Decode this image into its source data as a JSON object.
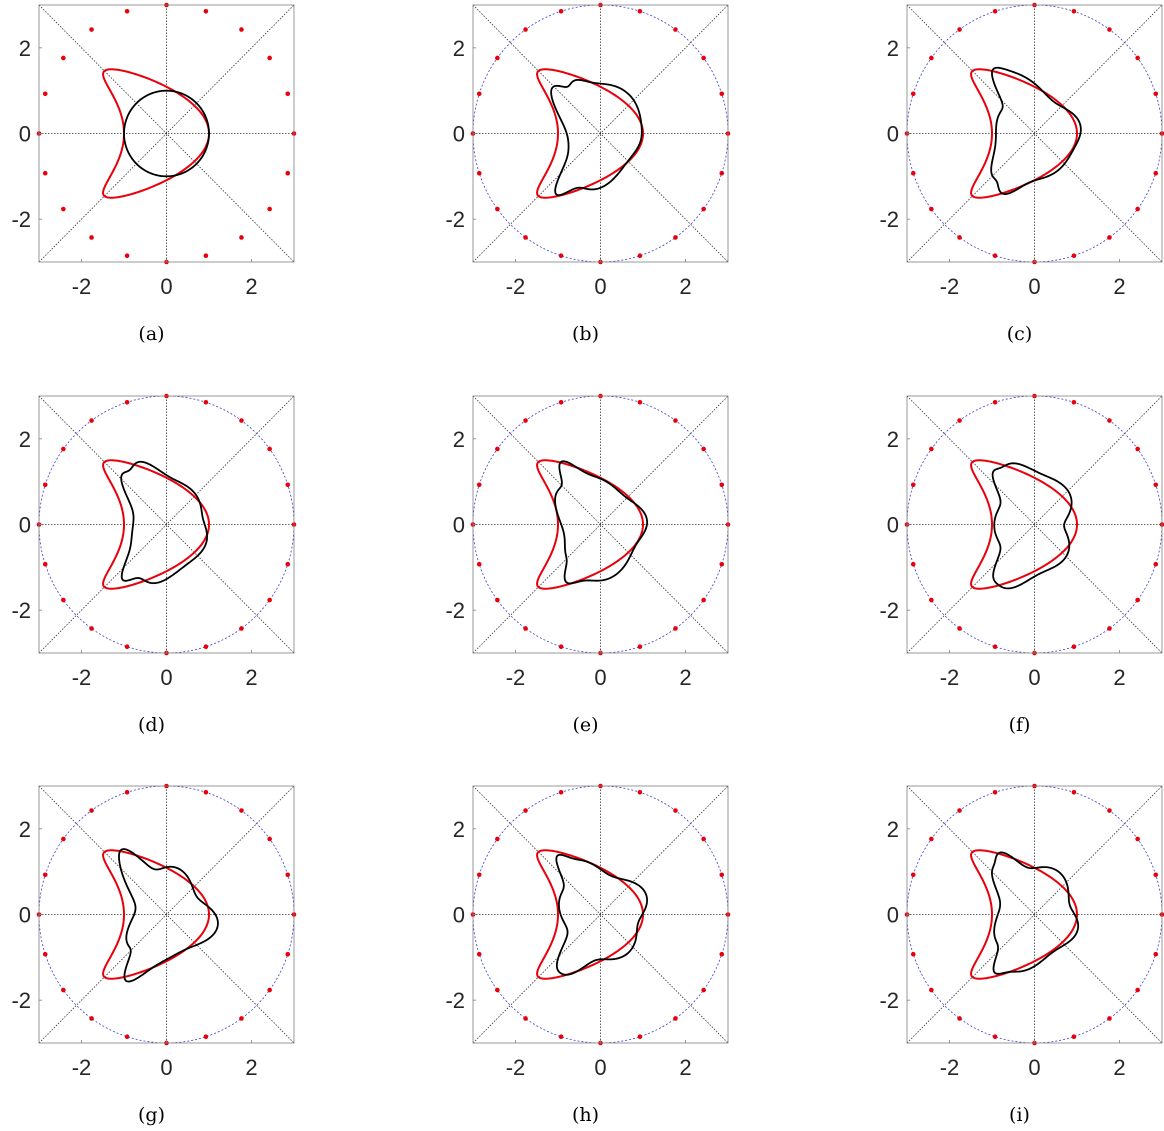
{
  "figure": {
    "colors": {
      "reconstruction": "#000000",
      "true_obstacle": "#e8000b",
      "sources": "#e8000b",
      "measurement_circle": "#3b3bd6",
      "guide_lines": "#333333",
      "axis_box": "#7f7f7f"
    }
  },
  "chart_data": [
    {
      "caption": "(a)",
      "type": "line",
      "xlim": [
        -3,
        3
      ],
      "ylim": [
        -3,
        3
      ],
      "xticks": [
        "-2",
        "0",
        "2"
      ],
      "yticks": [
        "-2",
        "0",
        "2"
      ],
      "measurement_circle": false,
      "source_points": "full",
      "series": [
        {
          "role": "true_obstacle",
          "shape": "kite"
        },
        {
          "role": "reconstruction",
          "shape": "circle",
          "radius": 1,
          "style": "solid"
        }
      ]
    },
    {
      "caption": "(b)",
      "type": "line",
      "xlim": [
        -3,
        3
      ],
      "ylim": [
        -3,
        3
      ],
      "xticks": [
        "-2",
        "0",
        "2"
      ],
      "yticks": [
        "-2",
        "0",
        "2"
      ],
      "measurement_circle": true,
      "source_points": "full",
      "series": [
        {
          "role": "true_obstacle",
          "shape": "kite"
        },
        {
          "role": "reconstruction",
          "shape": "wavy",
          "variant": 1,
          "style": "solid"
        }
      ]
    },
    {
      "caption": "(c)",
      "type": "line",
      "xlim": [
        -3,
        3
      ],
      "ylim": [
        -3,
        3
      ],
      "xticks": [
        "-2",
        "0",
        "2"
      ],
      "yticks": [
        "-2",
        "0",
        "2"
      ],
      "measurement_circle": "partial",
      "source_points": "full",
      "series": [
        {
          "role": "true_obstacle",
          "shape": "kite"
        },
        {
          "role": "reconstruction",
          "shape": "wavy",
          "variant": 2,
          "style": "solid"
        }
      ]
    },
    {
      "caption": "(d)",
      "type": "line",
      "xlim": [
        -3,
        3
      ],
      "ylim": [
        -3,
        3
      ],
      "xticks": [
        "-2",
        "0",
        "2"
      ],
      "yticks": [
        "-2",
        "0",
        "2"
      ],
      "measurement_circle": "partial",
      "source_points": "full",
      "series": [
        {
          "role": "true_obstacle",
          "shape": "kite"
        },
        {
          "role": "reconstruction",
          "shape": "wavy",
          "variant": 3,
          "style": "solid"
        }
      ]
    },
    {
      "caption": "(e)",
      "type": "line",
      "xlim": [
        -3,
        3
      ],
      "ylim": [
        -3,
        3
      ],
      "xticks": [
        "-2",
        "0",
        "2"
      ],
      "yticks": [
        "-2",
        "0",
        "2"
      ],
      "measurement_circle": true,
      "source_points": "full",
      "series": [
        {
          "role": "true_obstacle",
          "shape": "kite"
        },
        {
          "role": "reconstruction",
          "shape": "wavy",
          "variant": 4,
          "style": "solid"
        }
      ]
    },
    {
      "caption": "(f)",
      "type": "line",
      "xlim": [
        -3,
        3
      ],
      "ylim": [
        -3,
        3
      ],
      "xticks": [
        "-2",
        "0",
        "2"
      ],
      "yticks": [
        "-2",
        "0",
        "2"
      ],
      "measurement_circle": "partial",
      "source_points": "full",
      "series": [
        {
          "role": "true_obstacle",
          "shape": "kite"
        },
        {
          "role": "reconstruction",
          "shape": "wavy",
          "variant": 5,
          "style": "solid"
        }
      ]
    },
    {
      "caption": "(g)",
      "type": "line",
      "xlim": [
        -3,
        3
      ],
      "ylim": [
        -3,
        3
      ],
      "xticks": [
        "-2",
        "0",
        "2"
      ],
      "yticks": [
        "-2",
        "0",
        "2"
      ],
      "measurement_circle": "partial",
      "source_points": "full",
      "series": [
        {
          "role": "true_obstacle",
          "shape": "kite"
        },
        {
          "role": "reconstruction",
          "shape": "wavy",
          "variant": 6,
          "style": "solid"
        }
      ]
    },
    {
      "caption": "(h)",
      "type": "line",
      "xlim": [
        -3,
        3
      ],
      "ylim": [
        -3,
        3
      ],
      "xticks": [
        "-2",
        "0",
        "2"
      ],
      "yticks": [
        "-2",
        "0",
        "2"
      ],
      "measurement_circle": "partial",
      "source_points": "full",
      "series": [
        {
          "role": "true_obstacle",
          "shape": "kite"
        },
        {
          "role": "reconstruction",
          "shape": "wavy",
          "variant": 7,
          "style": "solid"
        }
      ]
    },
    {
      "caption": "(i)",
      "type": "line",
      "xlim": [
        -3,
        3
      ],
      "ylim": [
        -3,
        3
      ],
      "xticks": [
        "-2",
        "0",
        "2"
      ],
      "yticks": [
        "-2",
        "0",
        "2"
      ],
      "measurement_circle": "partial",
      "source_points": "full",
      "series": [
        {
          "role": "true_obstacle",
          "shape": "kite"
        },
        {
          "role": "reconstruction",
          "shape": "wavy",
          "variant": 8,
          "style": "solid"
        }
      ]
    }
  ]
}
